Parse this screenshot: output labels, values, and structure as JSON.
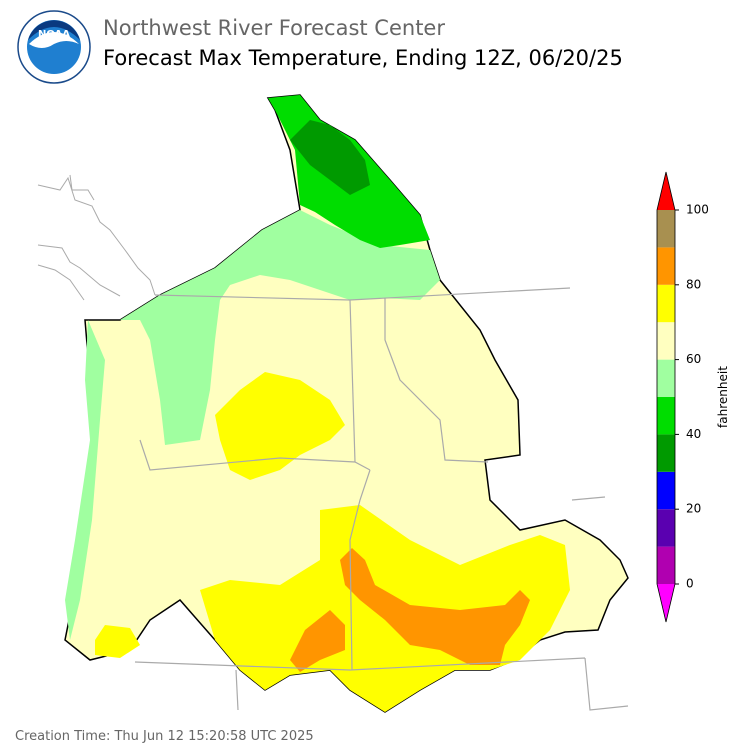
{
  "header": {
    "title": "Northwest River Forecast Center",
    "subtitle": "Forecast Max Temperature, Ending 12Z, 06/20/25",
    "logo": "NOAA"
  },
  "footer": {
    "creation_time": "Creation Time: Thu Jun 12 15:20:58 UTC 2025"
  },
  "colorbar": {
    "label": "fahrenheit",
    "bins": [
      0,
      10,
      20,
      30,
      40,
      50,
      60,
      70,
      80,
      90,
      100
    ],
    "colors": [
      "#b000b0",
      "#5a00b0",
      "#0000ff",
      "#009a00",
      "#00dd00",
      "#a0ffa0",
      "#ffffc0",
      "#ffff00",
      "#ff9500",
      "#a89050"
    ],
    "under_color": "#ff00ff",
    "over_color": "#ff0000",
    "ticks": [
      0,
      20,
      40,
      60,
      80,
      100
    ]
  }
}
